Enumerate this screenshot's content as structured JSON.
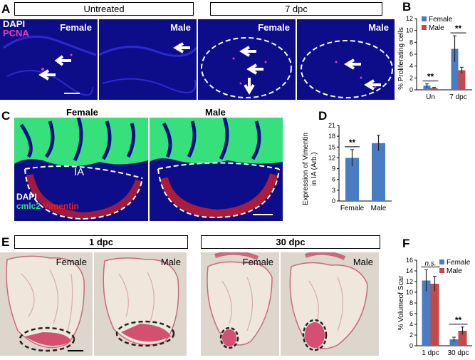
{
  "panel_labels": {
    "a": "A",
    "b": "B",
    "c": "C",
    "d": "D",
    "e": "E",
    "f": "F"
  },
  "panelA": {
    "group_untreated": "Untreated",
    "group_7dpc": "7 dpc",
    "stain1": "DAPI",
    "stain2": "PCNA",
    "sex_labels": [
      "Female",
      "Male",
      "Female",
      "Male"
    ]
  },
  "panelC": {
    "sex_labels": [
      "Female",
      "Male"
    ],
    "ia_label": "IA",
    "stain1": "DAPI",
    "stain2": "cmlc2",
    "stain3": "Vimentin"
  },
  "panelE": {
    "group_1dpc": "1 dpc",
    "group_30dpc": "30 dpc",
    "sex_labels": [
      "Female",
      "Male",
      "Female",
      "Male"
    ]
  },
  "colors": {
    "female": "#4a7cc4",
    "male": "#c44a4a",
    "dapi": "#0d0d8a",
    "pcna": "#e040c0",
    "cmlc2": "#36e07a",
    "vimentin": "#e02020"
  },
  "chart_data": [
    {
      "type": "bar",
      "panel": "B",
      "categories": [
        "Un",
        "7 dpc"
      ],
      "series": [
        {
          "name": "Female",
          "values": [
            0.7,
            6.9
          ],
          "errors": [
            0.3,
            2.2
          ]
        },
        {
          "name": "Male",
          "values": [
            0.3,
            3.3
          ],
          "errors": [
            0.1,
            0.5
          ]
        }
      ],
      "ylabel": "% Proliferating cells",
      "ylim": [
        0,
        12
      ],
      "yticks": [
        0,
        2,
        4,
        6,
        8,
        10,
        12
      ],
      "annotations": [
        "**",
        "**"
      ],
      "legend": "top-right"
    },
    {
      "type": "bar",
      "panel": "D",
      "categories": [
        "Female",
        "Male"
      ],
      "series": [
        {
          "name": "",
          "values": [
            12.0,
            16.1
          ],
          "errors": [
            2.3,
            2.2
          ]
        }
      ],
      "ylabel": "Expression of Vimentin in IA (Arb.)",
      "ylim": [
        0,
        21
      ],
      "yticks": [
        0,
        3,
        6,
        9,
        12,
        15,
        18,
        21
      ],
      "annotations": [
        "**"
      ]
    },
    {
      "type": "bar",
      "panel": "F",
      "categories": [
        "1 dpc",
        "30 dpc"
      ],
      "series": [
        {
          "name": "Female",
          "values": [
            12.2,
            1.2
          ],
          "errors": [
            2.0,
            0.4
          ]
        },
        {
          "name": "Male",
          "values": [
            11.6,
            2.8
          ],
          "errors": [
            1.4,
            0.7
          ]
        }
      ],
      "ylabel": "% Volumeof Scar",
      "ylim": [
        0,
        16
      ],
      "yticks": [
        0,
        2,
        4,
        6,
        8,
        10,
        12,
        14,
        16
      ],
      "annotations": [
        "n.s.",
        "**"
      ],
      "legend": "top-right"
    }
  ]
}
